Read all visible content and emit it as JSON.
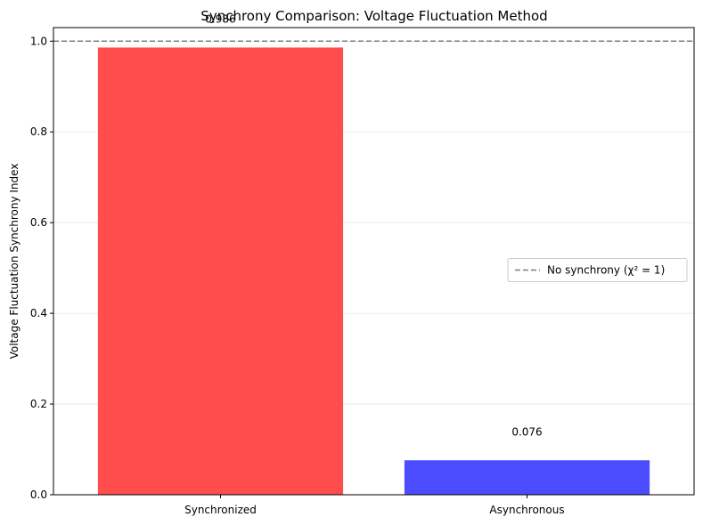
{
  "chart_data": {
    "type": "bar",
    "title": "Synchrony Comparison: Voltage Fluctuation Method",
    "xlabel": "",
    "ylabel": "Voltage Fluctuation Synchrony Index",
    "categories": [
      "Synchronized",
      "Asynchronous"
    ],
    "values": [
      0.986,
      0.076
    ],
    "value_labels": [
      "0.986",
      "0.076"
    ],
    "colors": [
      "#ff4c4c",
      "#4c4cff"
    ],
    "ylim": [
      0,
      1.03
    ],
    "yticks": [
      0.0,
      0.2,
      0.4,
      0.6,
      0.8,
      1.0
    ],
    "ytick_labels": [
      "0.0",
      "0.2",
      "0.4",
      "0.6",
      "0.8",
      "1.0"
    ],
    "grid": "y",
    "reference_line": {
      "y": 1.0,
      "style": "dashed",
      "color": "#7f7f7f",
      "label": "No synchrony (χ² = 1)"
    },
    "legend": {
      "placement": "center-right",
      "entries": [
        "No synchrony (χ² = 1)"
      ]
    }
  }
}
